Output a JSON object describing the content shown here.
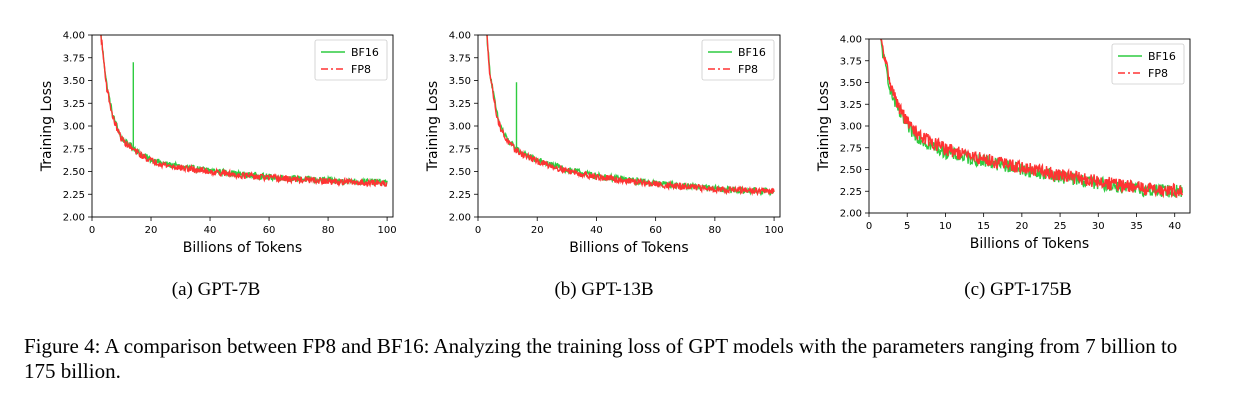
{
  "chart_data": [
    {
      "type": "line",
      "subcaption": "(a) GPT-7B",
      "xlabel": "Billions of Tokens",
      "ylabel": "Training Loss",
      "xlim": [
        0,
        102
      ],
      "ylim": [
        2.0,
        4.0
      ],
      "xticks": [
        0,
        20,
        40,
        60,
        80,
        100
      ],
      "yticks": [
        "2.00",
        "2.25",
        "2.50",
        "2.75",
        "3.00",
        "3.25",
        "3.50",
        "3.75",
        "4.00"
      ],
      "legend_position": "upper-right",
      "series": [
        {
          "name": "BF16",
          "color": "#2ecc40",
          "style": "solid",
          "x": [
            3,
            5,
            7,
            9,
            10,
            12,
            13.5,
            14,
            14.5,
            16,
            20,
            25,
            30,
            40,
            50,
            60,
            70,
            80,
            90,
            100
          ],
          "y": [
            4.0,
            3.45,
            3.12,
            2.95,
            2.87,
            2.8,
            2.78,
            3.7,
            2.75,
            2.7,
            2.63,
            2.58,
            2.55,
            2.51,
            2.47,
            2.44,
            2.42,
            2.4,
            2.39,
            2.38
          ]
        },
        {
          "name": "FP8",
          "color": "#ff3333",
          "style": "dashdot",
          "x": [
            3,
            5,
            7,
            9,
            10,
            12,
            14,
            16,
            20,
            25,
            30,
            40,
            50,
            60,
            70,
            80,
            90,
            100
          ],
          "y": [
            4.0,
            3.42,
            3.1,
            2.93,
            2.86,
            2.79,
            2.74,
            2.69,
            2.62,
            2.57,
            2.54,
            2.5,
            2.46,
            2.43,
            2.41,
            2.39,
            2.38,
            2.37
          ]
        }
      ]
    },
    {
      "type": "line",
      "subcaption": "(b) GPT-13B",
      "xlabel": "Billions of Tokens",
      "ylabel": "Training Loss",
      "xlim": [
        0,
        102
      ],
      "ylim": [
        2.0,
        4.0
      ],
      "xticks": [
        0,
        20,
        40,
        60,
        80,
        100
      ],
      "yticks": [
        "2.00",
        "2.25",
        "2.50",
        "2.75",
        "3.00",
        "3.25",
        "3.50",
        "3.75",
        "4.00"
      ],
      "legend_position": "upper-right",
      "series": [
        {
          "name": "BF16",
          "color": "#2ecc40",
          "style": "solid",
          "x": [
            3,
            4,
            5,
            6,
            7,
            9,
            11,
            12.5,
            13,
            13.5,
            15,
            20,
            30,
            40,
            50,
            60,
            70,
            80,
            90,
            100
          ],
          "y": [
            4.0,
            3.6,
            3.4,
            3.2,
            3.05,
            2.9,
            2.8,
            2.76,
            3.48,
            2.74,
            2.7,
            2.62,
            2.52,
            2.45,
            2.41,
            2.37,
            2.34,
            2.31,
            2.29,
            2.28
          ]
        },
        {
          "name": "FP8",
          "color": "#ff3333",
          "style": "dashdot",
          "x": [
            3,
            4,
            5,
            6,
            7,
            9,
            11,
            13,
            15,
            20,
            30,
            40,
            50,
            60,
            70,
            80,
            90,
            100
          ],
          "y": [
            4.0,
            3.58,
            3.38,
            3.18,
            3.03,
            2.88,
            2.79,
            2.73,
            2.69,
            2.61,
            2.51,
            2.44,
            2.4,
            2.36,
            2.33,
            2.31,
            2.29,
            2.28
          ]
        }
      ]
    },
    {
      "type": "line",
      "subcaption": "(c) GPT-175B",
      "xlabel": "Billions of Tokens",
      "ylabel": "Training Loss",
      "xlim": [
        0,
        42
      ],
      "ylim": [
        2.0,
        4.0
      ],
      "xticks": [
        0,
        5,
        10,
        15,
        20,
        25,
        30,
        35,
        40
      ],
      "yticks": [
        "2.00",
        "2.25",
        "2.50",
        "2.75",
        "3.00",
        "3.25",
        "3.50",
        "3.75",
        "4.00"
      ],
      "legend_position": "upper-right",
      "series": [
        {
          "name": "BF16",
          "color": "#2ecc40",
          "style": "solid",
          "x": [
            1.5,
            2,
            3,
            4,
            5,
            6,
            8,
            10,
            12,
            15,
            20,
            25,
            30,
            35,
            40,
            41
          ],
          "y": [
            4.0,
            3.75,
            3.35,
            3.15,
            3.0,
            2.9,
            2.78,
            2.7,
            2.65,
            2.6,
            2.5,
            2.42,
            2.34,
            2.27,
            2.25,
            2.25
          ]
        },
        {
          "name": "FP8",
          "color": "#ff3333",
          "style": "dashdot",
          "x": [
            1.5,
            2,
            3,
            4,
            5,
            6,
            8,
            10,
            12,
            15,
            20,
            25,
            30,
            35,
            40,
            41
          ],
          "y": [
            4.0,
            3.8,
            3.42,
            3.2,
            3.05,
            2.94,
            2.82,
            2.74,
            2.68,
            2.62,
            2.52,
            2.44,
            2.36,
            2.29,
            2.26,
            2.26
          ]
        }
      ]
    }
  ],
  "figure_caption": "Figure 4:  A comparison between FP8 and BF16: Analyzing the training loss of GPT models with the parameters ranging from 7 billion to 175 billion."
}
